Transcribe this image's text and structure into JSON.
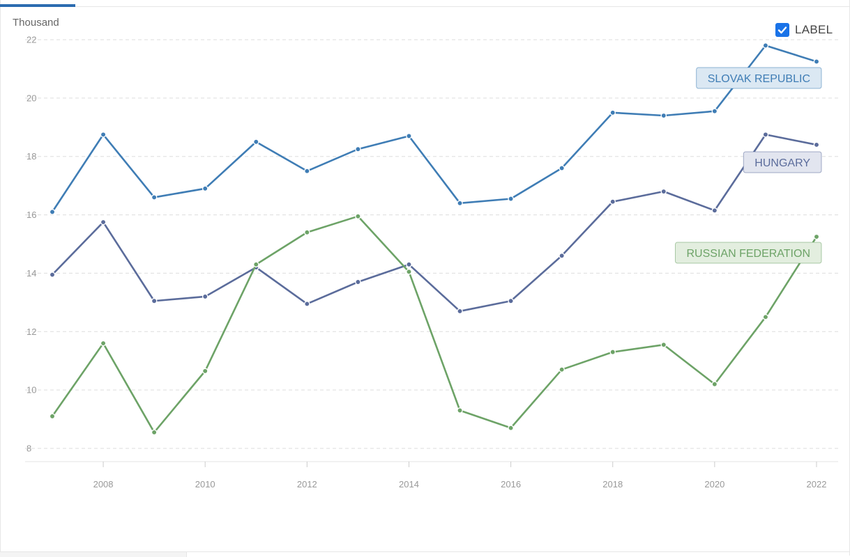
{
  "header": {
    "unit": "Thousand"
  },
  "label_toggle": {
    "text": "LABEL",
    "checked": true,
    "color": "#1a73e8"
  },
  "chart_data": {
    "type": "line",
    "ylabel": "Thousand",
    "ylim": [
      8,
      22
    ],
    "yticks": [
      8,
      10,
      12,
      14,
      16,
      18,
      20,
      22
    ],
    "xlim": [
      2007,
      2022
    ],
    "xticks": [
      2008,
      2010,
      2012,
      2014,
      2016,
      2018,
      2020,
      2022
    ],
    "grid": true,
    "x": [
      2007,
      2008,
      2009,
      2010,
      2011,
      2012,
      2013,
      2014,
      2015,
      2016,
      2017,
      2018,
      2019,
      2020,
      2021,
      2022
    ],
    "series": [
      {
        "name": "SLOVAK REPUBLIC",
        "color": "#3f7db5",
        "values": [
          16.1,
          18.75,
          16.6,
          16.9,
          18.5,
          17.5,
          18.25,
          18.7,
          16.4,
          16.55,
          17.6,
          19.5,
          19.4,
          19.55,
          21.8,
          21.25
        ]
      },
      {
        "name": "HUNGARY",
        "color": "#5b6c9b",
        "values": [
          13.95,
          15.75,
          13.05,
          13.2,
          14.2,
          12.95,
          13.7,
          14.3,
          12.7,
          13.05,
          14.6,
          16.45,
          16.8,
          16.15,
          18.75,
          18.4
        ]
      },
      {
        "name": "RUSSIAN FEDERATION",
        "color": "#6da367",
        "values": [
          9.1,
          11.6,
          8.55,
          10.65,
          14.3,
          15.4,
          15.95,
          14.05,
          9.3,
          8.7,
          10.7,
          11.3,
          11.55,
          10.2,
          12.5,
          15.25
        ]
      }
    ]
  }
}
